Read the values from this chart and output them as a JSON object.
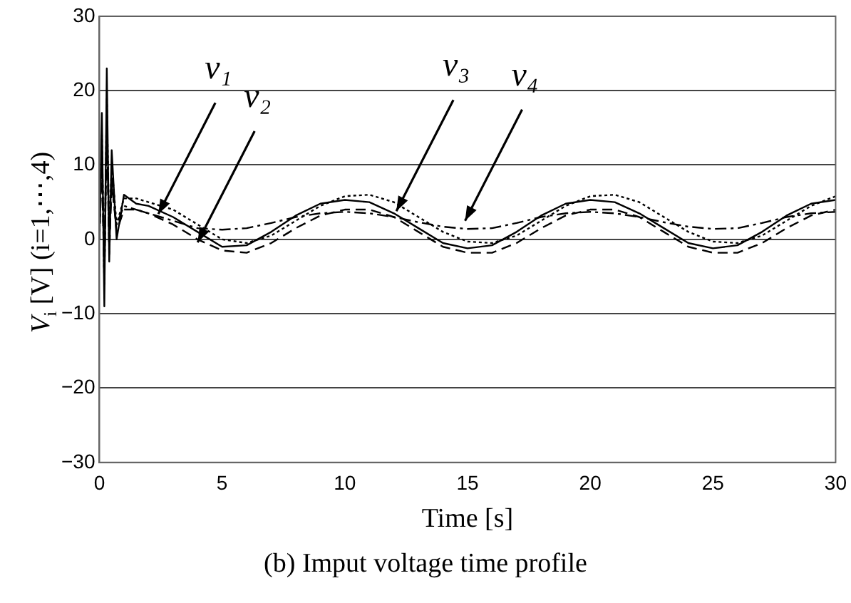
{
  "chart_data": {
    "type": "line",
    "xlabel": "Time [s]",
    "ylabel": "V$_{i}$ [V]  (i=1,⋯,4)",
    "x": [
      0,
      0.1,
      0.2,
      0.3,
      0.4,
      0.5,
      0.7,
      1,
      1.5,
      2,
      3,
      4,
      5,
      6,
      7,
      8,
      9,
      10,
      11,
      12,
      13,
      14,
      15,
      16,
      17,
      18,
      19,
      20,
      21,
      22,
      23,
      24,
      25,
      26,
      27,
      28,
      29,
      30
    ],
    "series": [
      {
        "color": "#000000",
        "line_style": "solid",
        "values": [
          0,
          17,
          -9,
          23,
          -3,
          12,
          0,
          6,
          4.8,
          4.5,
          3,
          1,
          -1,
          -0.8,
          1,
          3.2,
          4.8,
          5.3,
          5,
          3.5,
          1.5,
          -0.5,
          -1.2,
          -0.8,
          1,
          3.2,
          4.8,
          5.3,
          5,
          3.5,
          1.5,
          -0.5,
          -1.2,
          -0.8,
          1,
          3.2,
          4.8,
          5.3
        ]
      },
      {
        "color": "#000000",
        "line_style": "dashed",
        "values": [
          0,
          10,
          -5,
          15,
          -2,
          8,
          1,
          4,
          4,
          3.5,
          2,
          0,
          -1.5,
          -1.8,
          -0.5,
          1.5,
          3.2,
          4,
          4,
          3,
          1,
          -1,
          -1.8,
          -1.8,
          -0.5,
          1.5,
          3.2,
          4,
          4,
          3,
          1,
          -1,
          -1.8,
          -1.8,
          -0.5,
          1.5,
          3.2,
          4
        ]
      },
      {
        "color": "#000000",
        "line_style": "dotted",
        "values": [
          0,
          14,
          -6,
          19,
          0,
          10,
          2,
          5.5,
          5.5,
          5,
          4,
          2,
          0,
          -0.5,
          0.5,
          2.5,
          4.5,
          5.8,
          6,
          5,
          3,
          1,
          -0.3,
          -0.5,
          0.5,
          2.5,
          4.5,
          5.8,
          6,
          5,
          3,
          1,
          -0.3,
          -0.5,
          0.5,
          2.5,
          4.5,
          5.8
        ]
      },
      {
        "color": "#000000",
        "line_style": "dashdot",
        "values": [
          0,
          12,
          -4,
          16,
          0,
          7,
          2,
          4.5,
          4,
          3.5,
          2.5,
          1.5,
          1.3,
          1.5,
          2.2,
          3,
          3.5,
          3.7,
          3.5,
          3,
          2.3,
          1.7,
          1.4,
          1.5,
          2.2,
          3,
          3.5,
          3.7,
          3.5,
          3,
          2.3,
          1.7,
          1.4,
          1.5,
          2.2,
          3,
          3.5,
          3.7
        ]
      }
    ],
    "xlim": [
      0,
      30
    ],
    "xticks": [
      0,
      5,
      10,
      15,
      20,
      25,
      30
    ],
    "ylim": [
      -30,
      30
    ],
    "yticks": [
      -30,
      -20,
      -10,
      0,
      10,
      20,
      30
    ],
    "grid": "y",
    "legend": false,
    "marker": "none",
    "annotations": [
      {
        "text": "v₁",
        "x": 2.4,
        "y": 3.4
      },
      {
        "text": "v₂",
        "x": 4,
        "y": -0.4
      },
      {
        "text": "v₃",
        "x": 12.1,
        "y": 3.8
      },
      {
        "text": "v₄",
        "x": 14.9,
        "y": 2.5
      },
      "(b) Imput voltage time profile"
    ]
  }
}
